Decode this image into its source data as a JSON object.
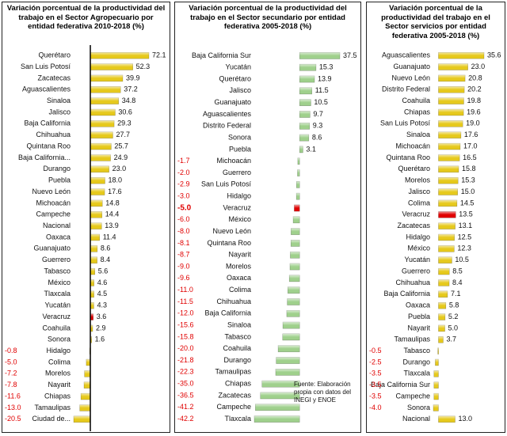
{
  "chart_data": [
    {
      "type": "bar",
      "orientation": "horizontal",
      "title": "Variación porcentual de la productividad del trabajo en el Sector Agropecuario por entidad federativa 2010-2018 (%)",
      "categories": [
        "Querétaro",
        "San Luis Potosí",
        "Zacatecas",
        "Aguascalientes",
        "Sinaloa",
        "Jalisco",
        "Baja California",
        "Chihuahua",
        "Quintana Roo",
        "Baja California...",
        "Durango",
        "Puebla",
        "Nuevo León",
        "Michoacán",
        "Campeche",
        "Nacional",
        "Oaxaca",
        "Guanajuato",
        "Guerrero",
        "Tabasco",
        "México",
        "Tlaxcala",
        "Yucatán",
        "Veracruz",
        "Coahuila",
        "Sonora",
        "Hidalgo",
        "Colima",
        "Morelos",
        "Nayarit",
        "Chiapas",
        "Tamaulipas",
        "Ciudad de..."
      ],
      "values": [
        72.1,
        52.3,
        39.9,
        37.2,
        34.8,
        30.6,
        29.3,
        27.7,
        25.7,
        24.9,
        23.0,
        18.0,
        17.6,
        14.8,
        14.4,
        13.9,
        11.4,
        8.6,
        8.4,
        5.6,
        4.6,
        4.5,
        4.3,
        3.6,
        2.9,
        1.6,
        -0.8,
        -5.0,
        -7.2,
        -7.8,
        -11.6,
        -13.0,
        -20.5
      ],
      "value_labels": [
        "72.1",
        "52.3",
        "39.9",
        "37.2",
        "34.8",
        "30.6",
        "29.3",
        "27.7",
        "25.7",
        "24.9",
        "23.0",
        "18.0",
        "17.6",
        "14.8",
        "14.4",
        "13.9",
        "11.4",
        "8.6",
        "8.4",
        "5.6",
        "4.6",
        "4.5",
        "4.3",
        "3.6",
        "2.9",
        "1.6",
        "-0.8",
        "-5.0",
        "-7.2",
        "-7.8",
        "-11.6",
        "-13.0",
        "-20.5"
      ],
      "color": "#e6c91c",
      "negative_label_color": "#e00000",
      "zero_line": true,
      "highlight": {
        "index": 23,
        "color": "#e00000",
        "bold": false
      }
    },
    {
      "type": "bar",
      "orientation": "horizontal",
      "title": "Variación porcentual de la productividad del trabajo en el Sector secundario por entidad federativa 2005-2018 (%)",
      "categories": [
        "Baja California Sur",
        "Yucatán",
        "Querétaro",
        "Jalisco",
        "Guanajuato",
        "Aguascalientes",
        "Distrito Federal",
        "Sonora",
        "Puebla",
        "Michoacán",
        "Guerrero",
        "San Luis Potosí",
        "Hidalgo",
        "Veracruz",
        "México",
        "Nuevo León",
        "Quintana Roo",
        "Nayarit",
        "Morelos",
        "Oaxaca",
        "Colima",
        "Chihuahua",
        "Baja California",
        "Sinaloa",
        "Tabasco",
        "Coahuila",
        "Durango",
        "Tamaulipas",
        "Chiapas",
        "Zacatecas",
        "Campeche",
        "Tlaxcala"
      ],
      "values": [
        37.5,
        15.3,
        13.9,
        11.5,
        10.5,
        9.7,
        9.3,
        8.6,
        3.1,
        -1.7,
        -2.0,
        -2.9,
        -3.0,
        -5.0,
        -6.0,
        -8.0,
        -8.1,
        -8.7,
        -9.0,
        -9.6,
        -11.0,
        -11.5,
        -12.0,
        -15.6,
        -15.8,
        -20.0,
        -21.8,
        -22.3,
        -35.0,
        -36.5,
        -41.2,
        -42.2
      ],
      "value_labels": [
        "37.5",
        "15.3",
        "13.9",
        "11.5",
        "10.5",
        "9.7",
        "9.3",
        "8.6",
        "3.1",
        "-1.7",
        "-2.0",
        "-2.9",
        "-3.0",
        "-5.0",
        "-6.0",
        "-8.0",
        "-8.1",
        "-8.7",
        "-9.0",
        "-9.6",
        "-11.0",
        "-11.5",
        "-12.0",
        "-15.6",
        "-15.8",
        "-20.0",
        "-21.8",
        "-22.3",
        "-35.0",
        "-36.5",
        "-41.2",
        "-42.2"
      ],
      "color": "#9fd08c",
      "negative_label_color": "#e00000",
      "zero_line": false,
      "highlight": {
        "index": 13,
        "color": "#e00000",
        "bold": true
      },
      "annotation": "Fuente: Elaboración propia con datos del INEGI y ENOE"
    },
    {
      "type": "bar",
      "orientation": "horizontal",
      "title": "Variación porcentual de la productividad del trabajo en el Sector servicios por entidad federativa 2005-2018 (%)",
      "categories": [
        "Aguascalientes",
        "Guanajuato",
        "Nuevo León",
        "Distrito Federal",
        "Coahuila",
        "Chiapas",
        "San Luis Potosí",
        "Sinaloa",
        "Michoacán",
        "Quintana Roo",
        "Querétaro",
        "Morelos",
        "Jalisco",
        "Colima",
        "Veracruz",
        "Zacatecas",
        "Hidalgo",
        "México",
        "Yucatán",
        "Guerrero",
        "Chihuahua",
        "Baja California",
        "Oaxaca",
        "Puebla",
        "Nayarit",
        "Tamaulipas",
        "Tabasco",
        "Durango",
        "Tlaxcala",
        "Baja California Sur",
        "Campeche",
        "Sonora",
        "Nacional"
      ],
      "values": [
        35.6,
        23.0,
        20.8,
        20.2,
        19.8,
        19.6,
        19.0,
        17.6,
        17.0,
        16.5,
        15.8,
        15.3,
        15.0,
        14.5,
        13.5,
        13.1,
        12.5,
        12.3,
        10.5,
        8.5,
        8.4,
        7.1,
        5.8,
        5.2,
        5.0,
        3.7,
        -0.5,
        -2.5,
        -3.5,
        -3.5,
        -3.5,
        -4.0,
        13.0
      ],
      "value_labels": [
        "35.6",
        "23.0",
        "20.8",
        "20.2",
        "19.8",
        "19.6",
        "19.0",
        "17.6",
        "17.0",
        "16.5",
        "15.8",
        "15.3",
        "15.0",
        "14.5",
        "13.5",
        "13.1",
        "12.5",
        "12.3",
        "10.5",
        "8.5",
        "8.4",
        "7.1",
        "5.8",
        "5.2",
        "5.0",
        "3.7",
        "-0.5",
        "-2.5",
        "-3.5",
        "-3.5",
        "-3.5",
        "-4.0",
        "13.0"
      ],
      "color": "#e6c91c",
      "negative_label_color": "#e00000",
      "zero_line": false,
      "highlight": {
        "index": 14,
        "color": "#e00000",
        "bold": false
      }
    }
  ]
}
